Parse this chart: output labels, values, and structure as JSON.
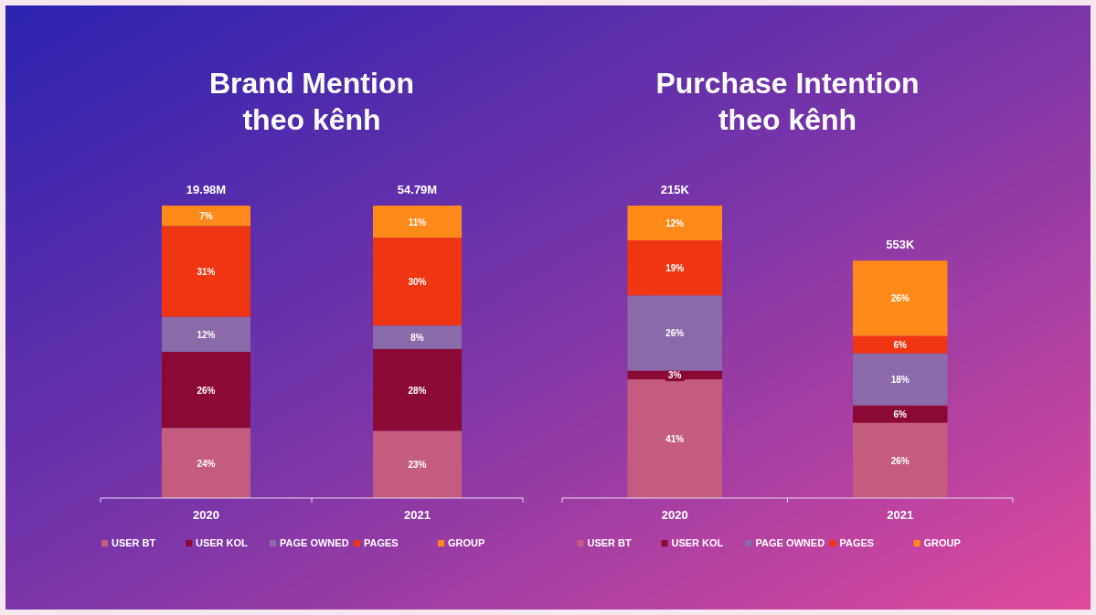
{
  "chart_data": [
    {
      "type": "bar",
      "title": "Brand Mention\ntheo kênh",
      "categories": [
        "2020",
        "2021"
      ],
      "stacked": true,
      "legend": "bottom",
      "annotations": [
        {
          "text": "19.98M",
          "x": "2020",
          "y": 100
        },
        {
          "text": "54.79M",
          "x": "2021",
          "y": 100
        }
      ],
      "series": [
        {
          "name": "USER BT",
          "color": "#c45c80",
          "values": [
            24,
            23
          ],
          "value_labels": [
            "24%",
            "23%"
          ]
        },
        {
          "name": "USER KOL",
          "color": "#8b0a35",
          "values": [
            26,
            28
          ],
          "value_labels": [
            "26%",
            "28%"
          ]
        },
        {
          "name": "PAGE OWNED",
          "color": "#8a6aa8",
          "values": [
            12,
            8
          ],
          "value_labels": [
            "12%",
            "8%"
          ]
        },
        {
          "name": "PAGES",
          "color": "#ef3512",
          "values": [
            31,
            30
          ],
          "value_labels": [
            "31%",
            "30%"
          ]
        },
        {
          "name": "GROUP",
          "color": "#ff8a1a",
          "values": [
            7,
            11
          ],
          "value_labels": [
            "7%",
            "11%"
          ]
        }
      ]
    },
    {
      "type": "bar",
      "title": "Purchase Intention\ntheo kênh",
      "categories": [
        "2020",
        "2021"
      ],
      "stacked": true,
      "legend": "bottom",
      "annotations": [
        {
          "text": "215K",
          "x": "2020",
          "y": 101
        },
        {
          "text": "553K",
          "x": "2021",
          "y": 82
        }
      ],
      "series": [
        {
          "name": "USER BT",
          "color": "#c45c80",
          "values": [
            41,
            26
          ],
          "value_labels": [
            "41%",
            "26%"
          ]
        },
        {
          "name": "USER KOL",
          "color": "#8b0a35",
          "values": [
            3,
            6
          ],
          "value_labels": [
            "3%",
            "6%"
          ]
        },
        {
          "name": "PAGE OWNED",
          "color": "#8a6aa8",
          "values": [
            26,
            18
          ],
          "value_labels": [
            "26%",
            "18%"
          ]
        },
        {
          "name": "PAGES",
          "color": "#ef3512",
          "values": [
            19,
            6
          ],
          "value_labels": [
            "19%",
            "6%"
          ]
        },
        {
          "name": "GROUP",
          "color": "#ff8a1a",
          "values": [
            12,
            26
          ],
          "value_labels": [
            "12%",
            "26%"
          ]
        }
      ]
    }
  ]
}
